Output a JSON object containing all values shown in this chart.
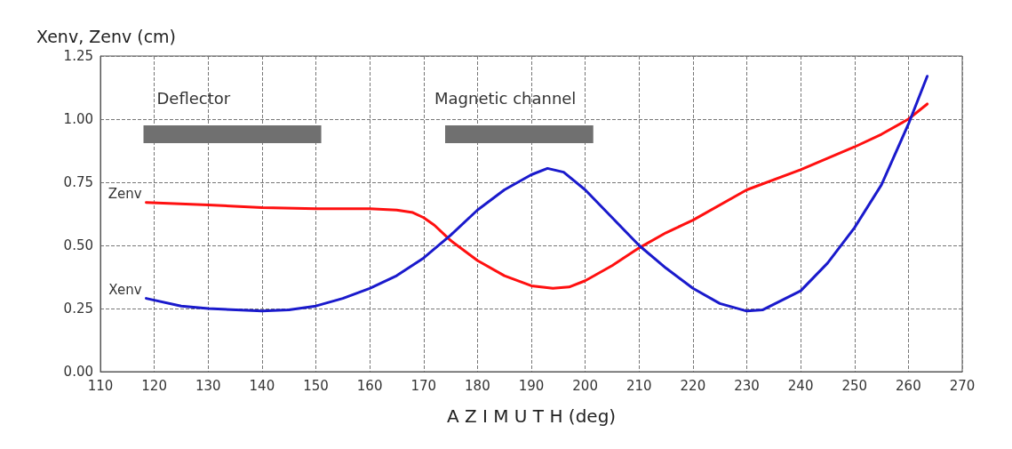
{
  "chart_data": {
    "type": "line",
    "ylabel": "Xenv, Zenv (cm)",
    "xlabel": "A Z I M U T H (deg)",
    "xlim": [
      110,
      270
    ],
    "xticks": [
      110,
      120,
      130,
      140,
      150,
      160,
      170,
      180,
      190,
      200,
      210,
      220,
      230,
      240,
      250,
      260,
      270
    ],
    "ylim": [
      0,
      1.25
    ],
    "yticks": [
      {
        "value": 0,
        "label": "0.00"
      },
      {
        "value": 0.25,
        "label": "0.25"
      },
      {
        "value": 0.5,
        "label": "0.50"
      },
      {
        "value": 0.75,
        "label": "0.75"
      },
      {
        "value": 1,
        "label": "1.00"
      },
      {
        "value": 1.25,
        "label": "1.25"
      }
    ],
    "grid": true,
    "legend": false,
    "marker": "none",
    "line_style": "solid",
    "series": [
      {
        "name": "Zenv",
        "color": "#ff1010",
        "x": [
          118.5,
          130,
          140,
          150,
          160,
          165,
          168,
          170,
          172,
          175,
          180,
          185,
          190,
          194,
          197,
          200,
          205,
          210,
          215,
          220,
          230,
          240,
          250,
          255,
          260,
          263.5
        ],
        "values": [
          0.67,
          0.66,
          0.65,
          0.645,
          0.645,
          0.64,
          0.63,
          0.61,
          0.58,
          0.52,
          0.44,
          0.38,
          0.34,
          0.33,
          0.335,
          0.36,
          0.42,
          0.49,
          0.55,
          0.6,
          0.72,
          0.8,
          0.89,
          0.94,
          1.0,
          1.06
        ]
      },
      {
        "name": "Xenv",
        "color": "#1a1acc",
        "x": [
          118.5,
          125,
          130,
          140,
          145,
          150,
          155,
          160,
          165,
          170,
          175,
          180,
          185,
          190,
          193,
          196,
          200,
          205,
          210,
          215,
          220,
          225,
          230,
          233,
          240,
          245,
          250,
          255,
          260,
          263.5
        ],
        "values": [
          0.29,
          0.26,
          0.25,
          0.24,
          0.245,
          0.26,
          0.29,
          0.33,
          0.38,
          0.45,
          0.54,
          0.64,
          0.72,
          0.78,
          0.805,
          0.79,
          0.72,
          0.61,
          0.5,
          0.41,
          0.33,
          0.27,
          0.24,
          0.245,
          0.32,
          0.43,
          0.57,
          0.74,
          0.98,
          1.17
        ]
      }
    ],
    "bands": [
      {
        "axis": "x",
        "from": 118,
        "to": 151,
        "label": "Deflector",
        "color": "#707070"
      },
      {
        "axis": "x",
        "from": 174,
        "to": 201.5,
        "label": "Magnetic channel",
        "color": "#707070"
      }
    ]
  }
}
